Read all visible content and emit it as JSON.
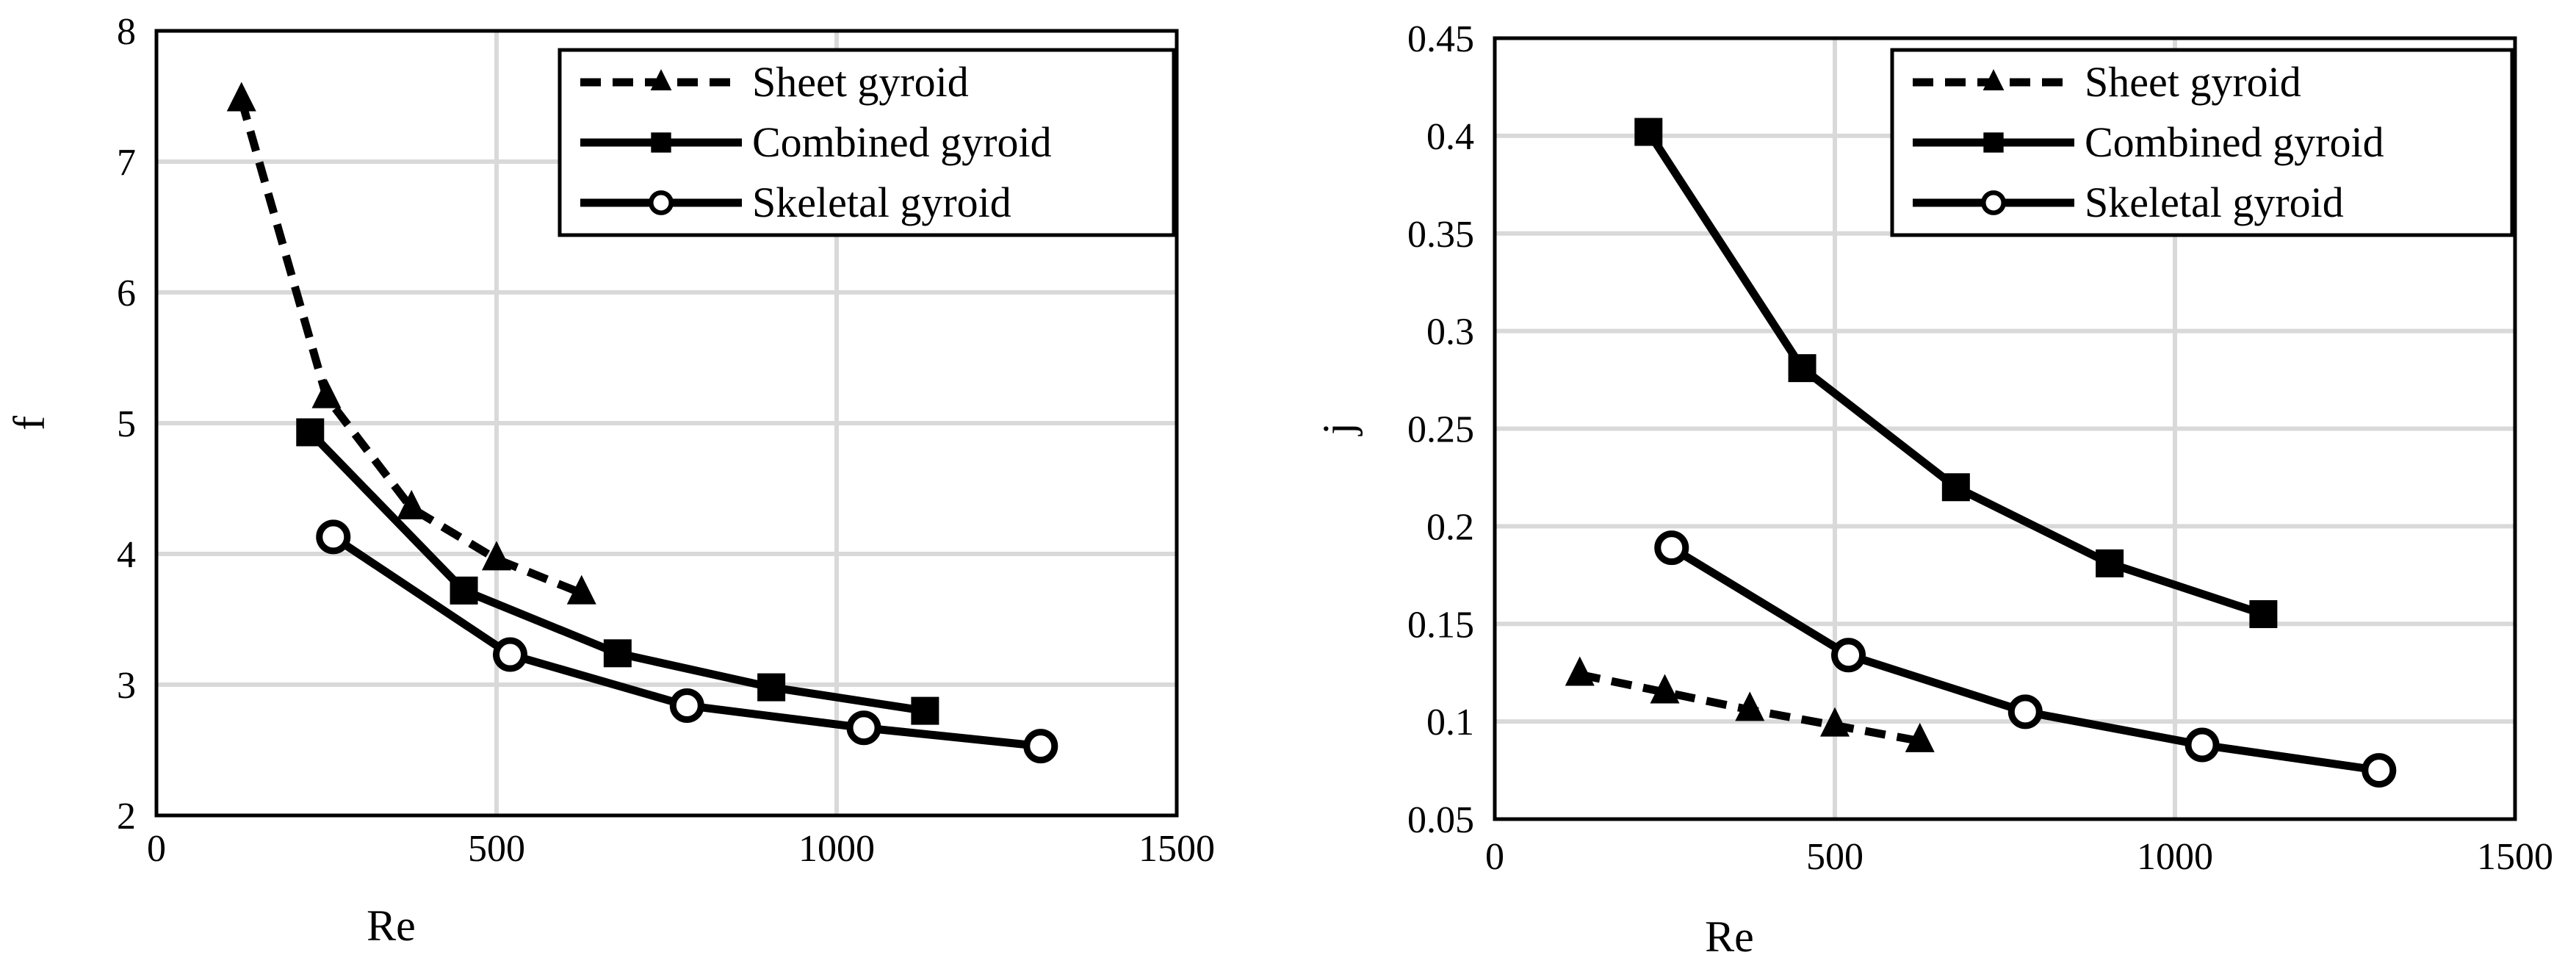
{
  "colors": {
    "line": "#000000",
    "grid": "#d9d9d9",
    "frame": "#000000",
    "background": "#ffffff"
  },
  "chart_data": [
    {
      "type": "line",
      "xlabel": "Re",
      "ylabel": "f",
      "xlim": [
        0,
        1500
      ],
      "ylim": [
        2,
        8
      ],
      "x_ticks": [
        0,
        500,
        1000,
        1500
      ],
      "x_tick_labels": [
        "0",
        "500",
        "1000",
        "1500"
      ],
      "y_ticks": [
        2,
        3,
        4,
        5,
        6,
        7,
        8
      ],
      "y_tick_labels": [
        "2",
        "3",
        "4",
        "5",
        "6",
        "7",
        "8"
      ],
      "grid": true,
      "legend_position": "top-right",
      "series": [
        {
          "name": "Sheet gyroid",
          "style": "dashed",
          "marker": "triangle",
          "x": [
            125,
            250,
            375,
            500,
            625
          ],
          "y": [
            7.47,
            5.2,
            4.35,
            3.96,
            3.7
          ]
        },
        {
          "name": "Combined gyroid",
          "style": "solid",
          "marker": "square",
          "x": [
            226,
            452,
            678,
            904,
            1130
          ],
          "y": [
            4.93,
            3.72,
            3.24,
            2.98,
            2.8
          ]
        },
        {
          "name": "Skeletal gyroid",
          "style": "solid",
          "marker": "circle",
          "x": [
            260,
            520,
            780,
            1040,
            1300
          ],
          "y": [
            4.13,
            3.23,
            2.84,
            2.67,
            2.53
          ]
        }
      ]
    },
    {
      "type": "line",
      "xlabel": "Re",
      "ylabel": "j",
      "xlim": [
        0,
        1500
      ],
      "ylim": [
        0.05,
        0.45
      ],
      "x_ticks": [
        0,
        500,
        1000,
        1500
      ],
      "x_tick_labels": [
        "0",
        "500",
        "1000",
        "1500"
      ],
      "y_ticks": [
        0.05,
        0.1,
        0.15,
        0.2,
        0.25,
        0.3,
        0.35,
        0.4,
        0.45
      ],
      "y_tick_labels": [
        "0.05",
        "0.1",
        "0.15",
        "0.2",
        "0.25",
        "0.3",
        "0.35",
        "0.4",
        "0.45"
      ],
      "grid": true,
      "legend_position": "top-right",
      "series": [
        {
          "name": "Sheet gyroid",
          "style": "dashed",
          "marker": "triangle",
          "x": [
            125,
            250,
            375,
            500,
            625
          ],
          "y": [
            0.124,
            0.115,
            0.106,
            0.098,
            0.09
          ]
        },
        {
          "name": "Combined gyroid",
          "style": "solid",
          "marker": "square",
          "x": [
            226,
            452,
            678,
            904,
            1130
          ],
          "y": [
            0.402,
            0.281,
            0.22,
            0.181,
            0.155
          ]
        },
        {
          "name": "Skeletal gyroid",
          "style": "solid",
          "marker": "circle",
          "x": [
            260,
            520,
            780,
            1040,
            1300
          ],
          "y": [
            0.189,
            0.134,
            0.105,
            0.088,
            0.075
          ]
        }
      ]
    }
  ]
}
